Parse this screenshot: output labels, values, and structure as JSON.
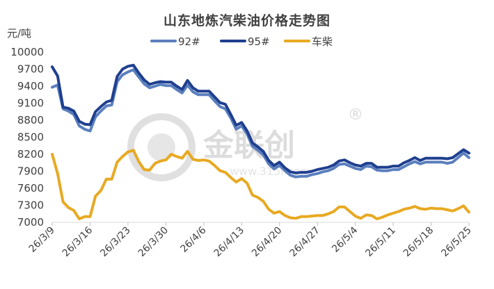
{
  "chart_data": {
    "type": "line",
    "title": "山东地炼汽柴油价格走势图",
    "ylabel": "元/吨",
    "xlabel": "",
    "ylim": [
      7000,
      10000
    ],
    "yticks": [
      7000,
      7300,
      7600,
      7900,
      8200,
      8500,
      8800,
      9100,
      9400,
      9700,
      10000
    ],
    "x_start": "26/3/9",
    "x_end": "26/5/25",
    "xtick_labels": [
      "26/3/9",
      "26/3/16",
      "26/3/23",
      "26/3/30",
      "26/4/6",
      "26/4/13",
      "26/4/20",
      "26/4/27",
      "26/5/4",
      "26/5/11",
      "26/5/18",
      "26/5/25"
    ],
    "legend_position": "top",
    "grid": false,
    "series": [
      {
        "name": "92#",
        "color": "#5b7fbe",
        "values": [
          9380,
          9420,
          9000,
          8960,
          8900,
          8700,
          8640,
          8610,
          8860,
          8960,
          9050,
          9070,
          9480,
          9600,
          9650,
          9690,
          9560,
          9440,
          9370,
          9400,
          9430,
          9410,
          9410,
          9340,
          9280,
          9420,
          9300,
          9250,
          9250,
          9250,
          9140,
          9040,
          9000,
          8840,
          8640,
          8700,
          8560,
          8340,
          8270,
          8190,
          8030,
          7940,
          8000,
          7910,
          7830,
          7800,
          7810,
          7810,
          7840,
          7860,
          7890,
          7910,
          7950,
          8020,
          8030,
          7990,
          7950,
          7930,
          7990,
          7980,
          7920,
          7910,
          7910,
          7930,
          7930,
          7980,
          8030,
          8070,
          8030,
          8060,
          8060,
          8060,
          8060,
          8040,
          8060,
          8140,
          8220,
          8140
        ]
      },
      {
        "name": "95#",
        "color": "#1f3f8f",
        "values": [
          9740,
          9580,
          9030,
          9010,
          8960,
          8780,
          8730,
          8720,
          8950,
          9040,
          9120,
          9150,
          9570,
          9700,
          9750,
          9770,
          9630,
          9510,
          9430,
          9460,
          9480,
          9470,
          9470,
          9400,
          9340,
          9500,
          9370,
          9310,
          9310,
          9310,
          9210,
          9110,
          9080,
          8900,
          8710,
          8760,
          8610,
          8400,
          8330,
          8250,
          8090,
          8000,
          8060,
          7960,
          7890,
          7870,
          7880,
          7880,
          7900,
          7930,
          7950,
          7970,
          8010,
          8080,
          8100,
          8050,
          8010,
          7990,
          8040,
          8040,
          7970,
          7970,
          7970,
          7990,
          7990,
          8050,
          8090,
          8140,
          8090,
          8130,
          8130,
          8130,
          8130,
          8120,
          8140,
          8210,
          8280,
          8220
        ]
      },
      {
        "name": "车柴",
        "color": "#e8a922",
        "values": [
          8200,
          7860,
          7360,
          7260,
          7210,
          7060,
          7100,
          7100,
          7460,
          7560,
          7760,
          7760,
          8060,
          8160,
          8240,
          8270,
          8070,
          7930,
          7920,
          8040,
          8080,
          8100,
          8200,
          8160,
          8130,
          8250,
          8110,
          8090,
          8100,
          8080,
          8000,
          7910,
          7880,
          7790,
          7710,
          7770,
          7690,
          7480,
          7440,
          7370,
          7230,
          7160,
          7190,
          7120,
          7080,
          7070,
          7100,
          7100,
          7110,
          7120,
          7120,
          7150,
          7190,
          7270,
          7270,
          7190,
          7110,
          7070,
          7130,
          7120,
          7060,
          7090,
          7130,
          7160,
          7190,
          7230,
          7250,
          7280,
          7240,
          7230,
          7250,
          7240,
          7240,
          7220,
          7200,
          7240,
          7290,
          7180
        ]
      }
    ]
  },
  "watermark": {
    "brand": "金联创",
    "url": "www.315i.com",
    "registered_mark": "®"
  }
}
